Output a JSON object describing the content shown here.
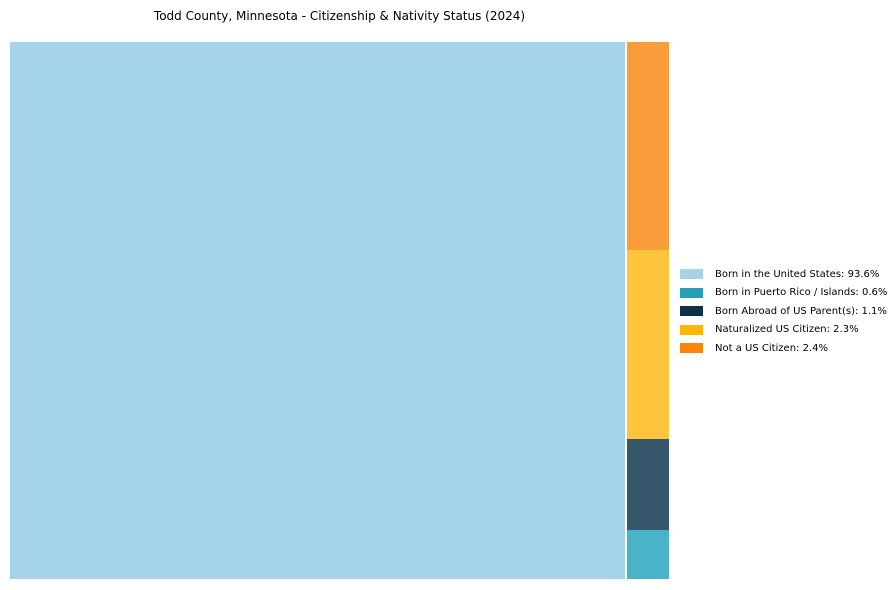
{
  "title": "Todd County, Minnesota - Citizenship & Nativity Status (2024)",
  "chart_data": {
    "type": "treemap",
    "title": "Todd County, Minnesota - Citizenship & Nativity Status (2024)",
    "categories": [
      "Born in the United States",
      "Born in Puerto Rico / Islands",
      "Born Abroad of US Parent(s)",
      "Naturalized US Citizen",
      "Not a US Citizen"
    ],
    "values": [
      93.6,
      0.6,
      1.1,
      2.3,
      2.4
    ],
    "unit": "%",
    "legend_position": "right",
    "base_colors": [
      "#A8D1E7",
      "#269EB8",
      "#0E3048",
      "#FFB607",
      "#F8860D"
    ],
    "fill_colors": [
      "#A5D3EB",
      "#4AB3C9",
      "#35566B",
      "#FEC53C",
      "#F99D3B"
    ],
    "layout": {
      "big_rect_category": "Born in the United States",
      "right_strip_order_top_to_bottom": [
        "Not a US Citizen",
        "Naturalized US Citizen",
        "Born Abroad of US Parent(s)",
        "Born in Puerto Rico / Islands"
      ]
    }
  },
  "legend": {
    "items": [
      {
        "label": "Born in the United States: 93.6%",
        "color": "#A8D1E7"
      },
      {
        "label": "Born in Puerto Rico / Islands: 0.6%",
        "color": "#269EB8"
      },
      {
        "label": "Born Abroad of US Parent(s): 1.1%",
        "color": "#0E3048"
      },
      {
        "label": "Naturalized US Citizen: 2.3%",
        "color": "#FFB607"
      },
      {
        "label": "Not a US Citizen: 2.4%",
        "color": "#F8860D"
      }
    ]
  }
}
